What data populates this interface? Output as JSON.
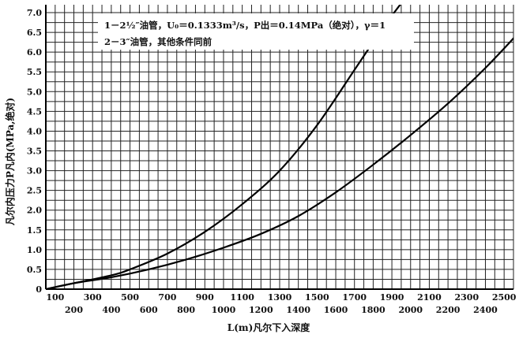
{
  "chart_data": {
    "type": "line",
    "xlabel": "L(m)凡尔下入深度",
    "ylabel": "凡尔内压力P凡内(MPa,绝对)",
    "xlim": [
      50,
      2550
    ],
    "ylim": [
      0,
      7.2
    ],
    "x_ticks_row1": [
      100,
      300,
      500,
      700,
      900,
      1100,
      1300,
      1500,
      1700,
      1900,
      2100,
      2300,
      2500
    ],
    "x_ticks_row2": [
      200,
      400,
      600,
      800,
      1000,
      1200,
      1400,
      1600,
      1800,
      2000,
      2200,
      2400
    ],
    "y_ticks": [
      "0",
      "0.5",
      "1.0",
      "1.5",
      "2.0",
      "2.5",
      "3.0",
      "3.5",
      "4.0",
      "4.5",
      "5.0",
      "5.5",
      "6.0",
      "6.5",
      "7.0"
    ],
    "grid": true,
    "legend": {
      "line1": "1－2½″油管，U₀＝0.1333m³/s，P出＝0.14MPa（绝对），γ＝1",
      "line2": "2－3″油管，其他条件同前"
    },
    "series": [
      {
        "name": "1",
        "x": [
          50,
          200,
          400,
          500,
          700,
          900,
          1100,
          1300,
          1500,
          1700,
          1850,
          1960
        ],
        "y": [
          0.0,
          0.15,
          0.35,
          0.5,
          0.9,
          1.45,
          2.15,
          3.0,
          4.15,
          5.55,
          6.6,
          7.3
        ]
      },
      {
        "name": "2",
        "x": [
          50,
          200,
          400,
          600,
          800,
          1000,
          1200,
          1400,
          1600,
          1800,
          2000,
          2200,
          2400,
          2560
        ],
        "y": [
          0.0,
          0.15,
          0.3,
          0.5,
          0.75,
          1.05,
          1.4,
          1.85,
          2.45,
          3.15,
          3.9,
          4.7,
          5.6,
          6.4
        ]
      }
    ]
  }
}
